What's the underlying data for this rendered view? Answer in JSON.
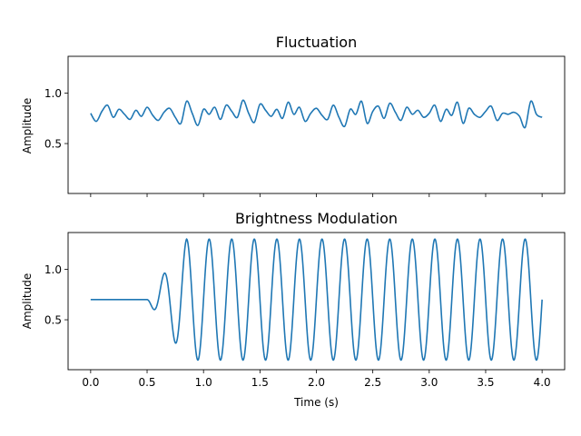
{
  "chart_data": [
    {
      "type": "line",
      "title": "Fluctuation",
      "xlabel": "",
      "ylabel": "Amplitude",
      "xlim": [
        -0.2,
        4.2
      ],
      "ylim": [
        0.005,
        1.365
      ],
      "xticks": [
        0.0,
        0.5,
        1.0,
        1.5,
        2.0,
        2.5,
        3.0,
        3.5,
        4.0
      ],
      "xtick_labels_visible": false,
      "yticks": [
        0.5,
        1.0
      ],
      "ytick_labels": [
        "0.5",
        "1.0"
      ],
      "series": [
        {
          "name": "fluctuation",
          "color": "#1f77b4",
          "x": [
            0.0,
            0.05,
            0.1,
            0.15,
            0.2,
            0.25,
            0.3,
            0.35,
            0.4,
            0.45,
            0.5,
            0.55,
            0.6,
            0.65,
            0.7,
            0.75,
            0.8,
            0.85,
            0.9,
            0.95,
            1.0,
            1.05,
            1.1,
            1.15,
            1.2,
            1.25,
            1.3,
            1.35,
            1.4,
            1.45,
            1.5,
            1.55,
            1.6,
            1.65,
            1.7,
            1.75,
            1.8,
            1.85,
            1.9,
            1.95,
            2.0,
            2.05,
            2.1,
            2.15,
            2.2,
            2.25,
            2.3,
            2.35,
            2.4,
            2.45,
            2.5,
            2.55,
            2.6,
            2.65,
            2.7,
            2.75,
            2.8,
            2.85,
            2.9,
            2.95,
            3.0,
            3.05,
            3.1,
            3.15,
            3.2,
            3.25,
            3.3,
            3.35,
            3.4,
            3.45,
            3.5,
            3.55,
            3.6,
            3.65,
            3.7,
            3.75,
            3.8,
            3.85,
            3.9,
            3.95,
            4.0
          ],
          "values": [
            0.8,
            0.72,
            0.82,
            0.88,
            0.76,
            0.84,
            0.79,
            0.74,
            0.83,
            0.77,
            0.86,
            0.78,
            0.73,
            0.81,
            0.85,
            0.76,
            0.7,
            0.92,
            0.8,
            0.68,
            0.84,
            0.79,
            0.86,
            0.74,
            0.88,
            0.82,
            0.76,
            0.93,
            0.8,
            0.71,
            0.89,
            0.83,
            0.77,
            0.84,
            0.75,
            0.91,
            0.79,
            0.86,
            0.72,
            0.8,
            0.85,
            0.78,
            0.74,
            0.88,
            0.76,
            0.67,
            0.84,
            0.79,
            0.92,
            0.7,
            0.82,
            0.87,
            0.75,
            0.9,
            0.81,
            0.73,
            0.86,
            0.79,
            0.83,
            0.76,
            0.8,
            0.88,
            0.72,
            0.84,
            0.78,
            0.91,
            0.7,
            0.85,
            0.79,
            0.76,
            0.82,
            0.87,
            0.73,
            0.8,
            0.79,
            0.81,
            0.77,
            0.66,
            0.92,
            0.79,
            0.76
          ]
        }
      ]
    },
    {
      "type": "line",
      "title": "Brightness Modulation",
      "xlabel": "Time (s)",
      "ylabel": "Amplitude",
      "xlim": [
        -0.2,
        4.2
      ],
      "ylim": [
        0.005,
        1.365
      ],
      "xticks": [
        0.0,
        0.5,
        1.0,
        1.5,
        2.0,
        2.5,
        3.0,
        3.5,
        4.0
      ],
      "xtick_labels": [
        "0.0",
        "0.5",
        "1.0",
        "1.5",
        "2.0",
        "2.5",
        "3.0",
        "3.5",
        "4.0"
      ],
      "yticks": [
        0.5,
        1.0
      ],
      "ytick_labels": [
        "0.5",
        "1.0"
      ],
      "series": [
        {
          "name": "brightness",
          "color": "#1f77b4",
          "baseline": 0.7,
          "amplitude": 0.6,
          "frequency_hz": 5,
          "onset_s": 0.5,
          "ramp_end_s": 0.85,
          "t_end_s": 4.0
        }
      ]
    }
  ]
}
